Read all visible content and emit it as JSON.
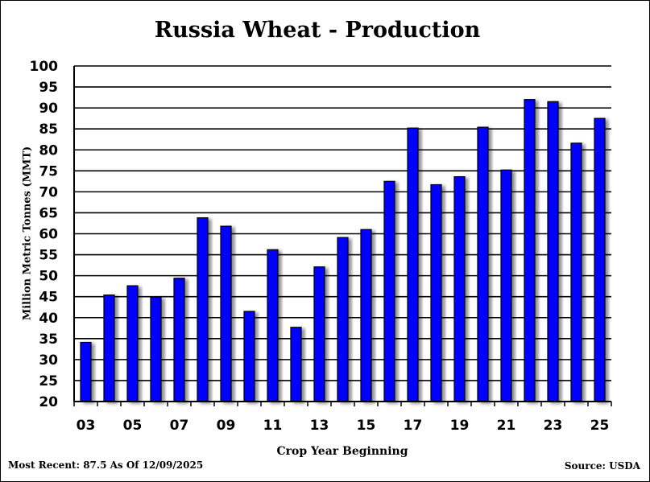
{
  "chart_data": {
    "type": "bar",
    "title": "Russia Wheat - Production",
    "xlabel": "Crop Year Beginning",
    "ylabel": "Million Metric Tonnes (MMT)",
    "ylim": [
      20,
      100
    ],
    "ytick_step": 5,
    "grid": true,
    "bar_color": "#0000ff",
    "categories": [
      "03",
      "04",
      "05",
      "06",
      "07",
      "08",
      "09",
      "10",
      "11",
      "12",
      "13",
      "14",
      "15",
      "16",
      "17",
      "18",
      "19",
      "20",
      "21",
      "22",
      "23",
      "24",
      "25"
    ],
    "x_tick_labels": [
      "03",
      "05",
      "07",
      "09",
      "11",
      "13",
      "15",
      "17",
      "19",
      "21",
      "23",
      "25"
    ],
    "values": [
      34.1,
      45.4,
      47.6,
      44.9,
      49.4,
      63.8,
      61.8,
      41.5,
      56.2,
      37.7,
      52.1,
      59.1,
      61.0,
      72.5,
      85.2,
      71.7,
      73.6,
      85.4,
      75.2,
      92.0,
      91.5,
      81.6,
      87.5
    ]
  },
  "footer": {
    "most_recent": "Most Recent: 87.5 As Of 12/09/2025",
    "source": "Source: USDA"
  }
}
